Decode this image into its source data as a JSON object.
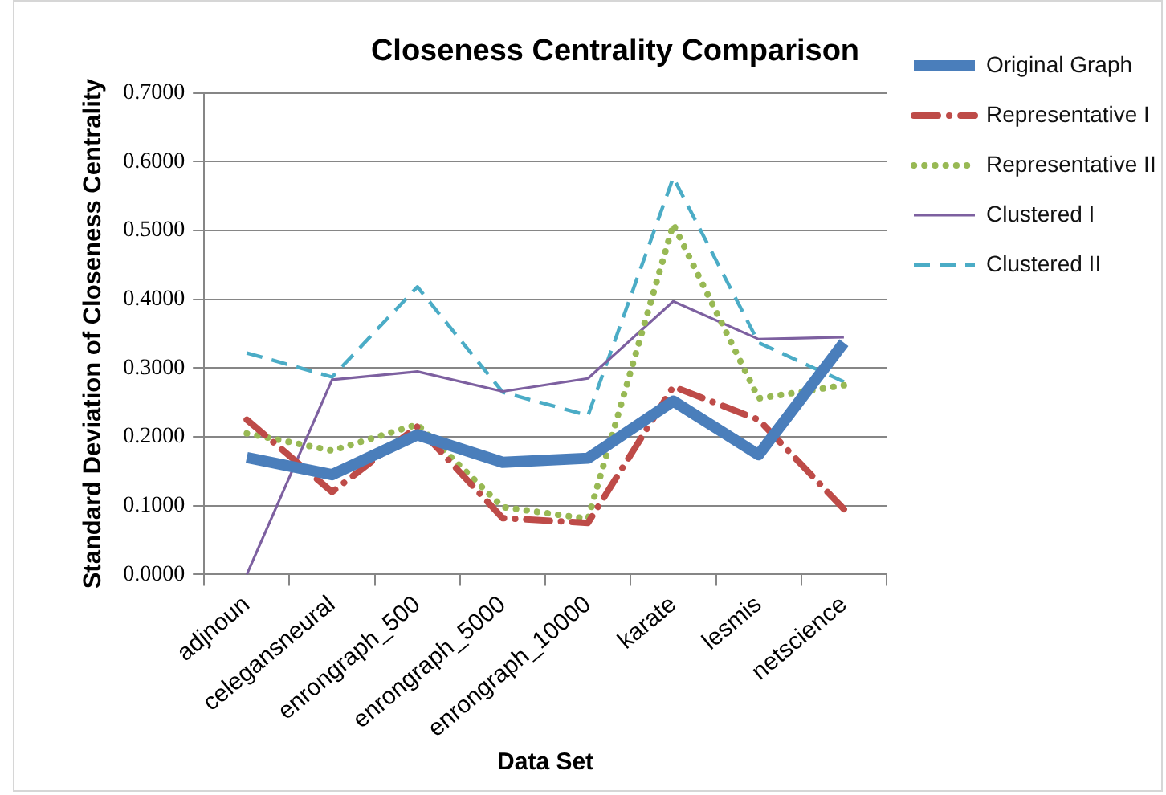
{
  "chart_data": {
    "type": "line",
    "title": "Closeness Centrality Comparison",
    "xlabel": "Data Set",
    "ylabel": "Standard Deviation of Closeness Centrality",
    "categories": [
      "adjnoun",
      "celegansneural",
      "enrongraph_500",
      "enrongraph_5000",
      "enrongraph_10000",
      "karate",
      "lesmis",
      "netscience"
    ],
    "series": [
      {
        "name": "Original Graph",
        "color": "#4a7ebb",
        "line_style": "solid",
        "values": [
          0.17,
          0.145,
          0.203,
          0.163,
          0.169,
          0.252,
          0.174,
          0.337
        ]
      },
      {
        "name": "Representative I",
        "color": "#be4b48",
        "line_style": "dashdot",
        "values": [
          0.225,
          0.12,
          0.215,
          0.082,
          0.075,
          0.273,
          0.225,
          0.095
        ]
      },
      {
        "name": "Representative II",
        "color": "#98b954",
        "line_style": "dotted",
        "values": [
          0.205,
          0.18,
          0.218,
          0.098,
          0.081,
          0.509,
          0.256,
          0.275
        ]
      },
      {
        "name": "Clustered I",
        "color": "#7d60a0",
        "line_style": "solid",
        "values": [
          0.0,
          0.283,
          0.295,
          0.266,
          0.285,
          0.397,
          0.342,
          0.345
        ]
      },
      {
        "name": "Clustered II",
        "color": "#4bacc6",
        "line_style": "dashed",
        "values": [
          0.322,
          0.287,
          0.418,
          0.265,
          0.231,
          0.577,
          0.337,
          0.28
        ]
      }
    ],
    "ylim": [
      0,
      0.7
    ],
    "yticks": [
      {
        "value": 0,
        "label": "0.0000"
      },
      {
        "value": 0.1,
        "label": "0.1000"
      },
      {
        "value": 0.2,
        "label": "0.2000"
      },
      {
        "value": 0.3,
        "label": "0.3000"
      },
      {
        "value": 0.4,
        "label": "0.4000"
      },
      {
        "value": 0.5,
        "label": "0.5000"
      },
      {
        "value": 0.6,
        "label": "0.6000"
      },
      {
        "value": 0.7,
        "label": "0.7000"
      }
    ],
    "grid": "y",
    "legend": "top right",
    "marker": "none"
  }
}
